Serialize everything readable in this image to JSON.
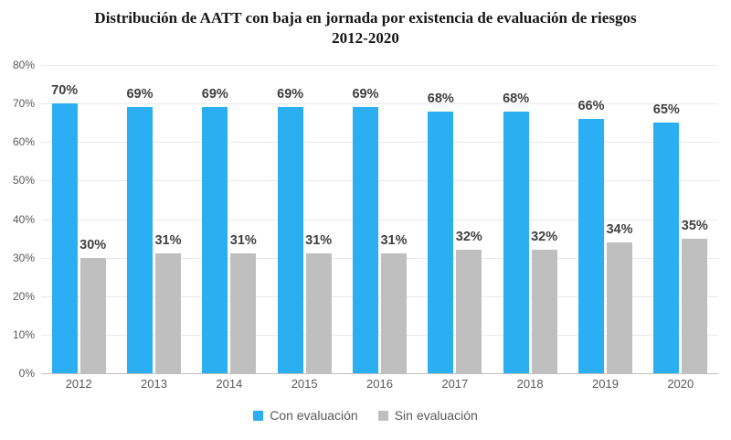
{
  "title": "Distribución de AATT con baja en jornada por existencia de evaluación de riesgos 2012-2020",
  "colors": {
    "series_blue": "#2BAEF2",
    "series_gray": "#BFBFBF",
    "gridline": "#E9E9E9",
    "axis_line": "#BFBFBF",
    "tick_label": "#595959",
    "data_label": "#404040",
    "title_text": "#161616",
    "background": "#FFFFFF"
  },
  "chart_data": {
    "type": "bar",
    "title": "Distribución de AATT con baja en jornada por existencia de evaluación de riesgos 2012-2020",
    "categories": [
      "2012",
      "2013",
      "2014",
      "2015",
      "2016",
      "2017",
      "2018",
      "2019",
      "2020"
    ],
    "series": [
      {
        "name": "Con evaluación",
        "color": "#2BAEF2",
        "values": [
          70,
          69,
          69,
          69,
          69,
          68,
          68,
          66,
          65
        ],
        "labels": [
          "70%",
          "69%",
          "69%",
          "69%",
          "69%",
          "68%",
          "68%",
          "66%",
          "65%"
        ]
      },
      {
        "name": "Sin evaluación",
        "color": "#BFBFBF",
        "values": [
          30,
          31,
          31,
          31,
          31,
          32,
          32,
          34,
          35
        ],
        "labels": [
          "30%",
          "31%",
          "31%",
          "31%",
          "31%",
          "32%",
          "32%",
          "34%",
          "35%"
        ]
      }
    ],
    "xlabel": "",
    "ylabel": "",
    "ylim": [
      0,
      80
    ],
    "y_ticks": [
      "0%",
      "10%",
      "20%",
      "30%",
      "40%",
      "50%",
      "60%",
      "70%",
      "80%"
    ],
    "grid": "horizontal",
    "legend_position": "bottom",
    "data_labels": true
  }
}
